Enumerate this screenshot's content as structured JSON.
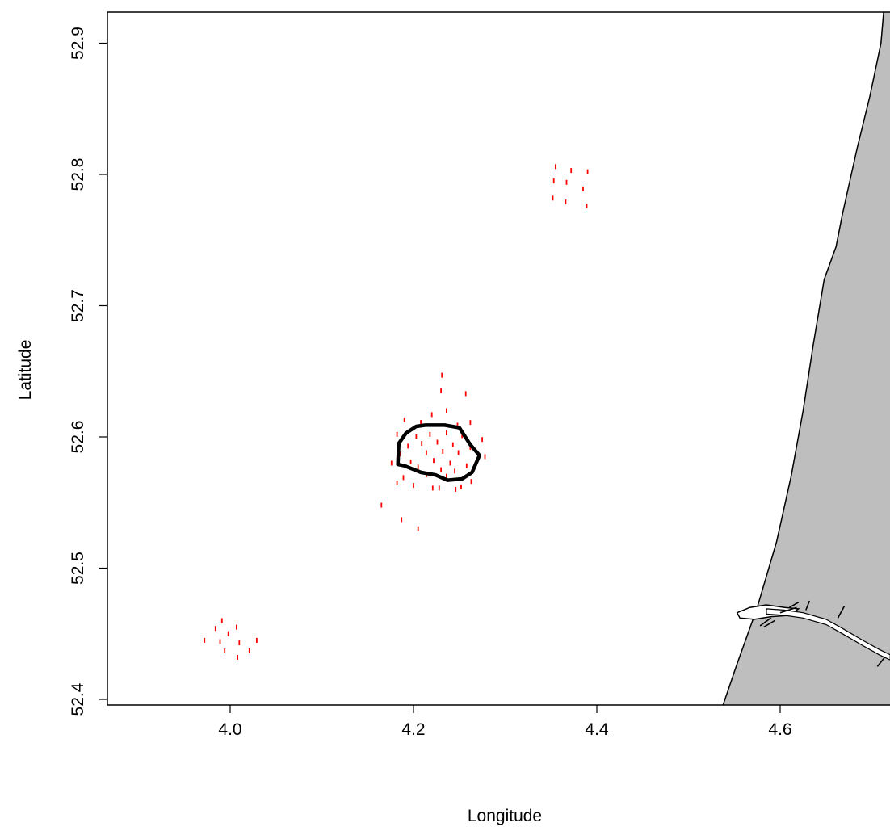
{
  "chart_data": {
    "type": "scatter",
    "title": "",
    "xlabel": "Longitude",
    "ylabel": "Latitude",
    "xlim": [
      3.88,
      4.72
    ],
    "ylim": [
      52.38,
      52.92
    ],
    "xticks": [
      4.0,
      4.2,
      4.4,
      4.6
    ],
    "xtick_labels": [
      "4.0",
      "4.2",
      "4.4",
      "4.6"
    ],
    "yticks": [
      52.4,
      52.5,
      52.6,
      52.7,
      52.8,
      52.9
    ],
    "ytick_labels": [
      "52.4",
      "52.5",
      "52.6",
      "52.7",
      "52.8",
      "52.9"
    ],
    "grid": false,
    "colors": {
      "points": "#ff0000",
      "land": "#bebebe",
      "outline": "#000000"
    },
    "series": [
      {
        "values": [
          [
            4.355,
            52.806
          ],
          [
            4.372,
            52.803
          ],
          [
            4.39,
            52.802
          ],
          [
            4.353,
            52.795
          ],
          [
            4.367,
            52.794
          ],
          [
            4.385,
            52.789
          ],
          [
            4.352,
            52.782
          ],
          [
            4.366,
            52.779
          ],
          [
            4.389,
            52.776
          ],
          [
            3.991,
            52.46
          ],
          [
            3.984,
            52.454
          ],
          [
            4.007,
            52.455
          ],
          [
            3.998,
            52.45
          ],
          [
            3.972,
            52.445
          ],
          [
            3.989,
            52.444
          ],
          [
            4.01,
            52.443
          ],
          [
            4.029,
            52.445
          ],
          [
            3.994,
            52.437
          ],
          [
            4.021,
            52.437
          ],
          [
            4.008,
            52.432
          ],
          [
            4.231,
            52.647
          ],
          [
            4.23,
            52.635
          ],
          [
            4.257,
            52.633
          ],
          [
            4.236,
            52.62
          ],
          [
            4.22,
            52.617
          ],
          [
            4.262,
            52.611
          ],
          [
            4.19,
            52.613
          ],
          [
            4.208,
            52.611
          ],
          [
            4.248,
            52.609
          ],
          [
            4.182,
            52.602
          ],
          [
            4.203,
            52.6
          ],
          [
            4.218,
            52.602
          ],
          [
            4.236,
            52.603
          ],
          [
            4.253,
            52.601
          ],
          [
            4.275,
            52.598
          ],
          [
            4.194,
            52.593
          ],
          [
            4.209,
            52.595
          ],
          [
            4.226,
            52.596
          ],
          [
            4.243,
            52.594
          ],
          [
            4.262,
            52.592
          ],
          [
            4.186,
            52.587
          ],
          [
            4.214,
            52.588
          ],
          [
            4.232,
            52.589
          ],
          [
            4.249,
            52.588
          ],
          [
            4.278,
            52.585
          ],
          [
            4.176,
            52.58
          ],
          [
            4.197,
            52.581
          ],
          [
            4.222,
            52.582
          ],
          [
            4.24,
            52.58
          ],
          [
            4.258,
            52.578
          ],
          [
            4.205,
            52.577
          ],
          [
            4.23,
            52.575
          ],
          [
            4.245,
            52.574
          ],
          [
            4.189,
            52.569
          ],
          [
            4.214,
            52.571
          ],
          [
            4.236,
            52.57
          ],
          [
            4.263,
            52.566
          ],
          [
            4.182,
            52.565
          ],
          [
            4.2,
            52.563
          ],
          [
            4.228,
            52.561
          ],
          [
            4.246,
            52.56
          ],
          [
            4.221,
            52.561
          ],
          [
            4.165,
            52.548
          ],
          [
            4.187,
            52.537
          ],
          [
            4.205,
            52.53
          ],
          [
            4.252,
            52.562
          ]
        ]
      }
    ],
    "polygon": [
      [
        4.213,
        52.609
      ],
      [
        4.234,
        52.609
      ],
      [
        4.25,
        52.607
      ],
      [
        4.262,
        52.594
      ],
      [
        4.272,
        52.586
      ],
      [
        4.264,
        52.573
      ],
      [
        4.253,
        52.568
      ],
      [
        4.237,
        52.567
      ],
      [
        4.224,
        52.571
      ],
      [
        4.208,
        52.573
      ],
      [
        4.19,
        52.578
      ],
      [
        4.183,
        52.579
      ],
      [
        4.184,
        52.595
      ],
      [
        4.192,
        52.603
      ],
      [
        4.203,
        52.608
      ]
    ],
    "coastline": [
      [
        4.53,
        52.38
      ],
      [
        4.552,
        52.425
      ],
      [
        4.575,
        52.47
      ],
      [
        4.596,
        52.52
      ],
      [
        4.612,
        52.57
      ],
      [
        4.625,
        52.62
      ],
      [
        4.636,
        52.67
      ],
      [
        4.648,
        52.72
      ],
      [
        4.661,
        52.745
      ],
      [
        4.668,
        52.77
      ],
      [
        4.684,
        52.82
      ],
      [
        4.698,
        52.86
      ],
      [
        4.71,
        52.9
      ],
      [
        4.713,
        52.925
      ]
    ],
    "channel": [
      [
        4.585,
        52.467
      ],
      [
        4.605,
        52.466
      ],
      [
        4.625,
        52.464
      ],
      [
        4.65,
        52.459
      ],
      [
        4.668,
        52.452
      ],
      [
        4.69,
        52.443
      ],
      [
        4.708,
        52.436
      ],
      [
        4.72,
        52.432
      ]
    ],
    "harbour_outline": [
      [
        4.553,
        52.466
      ],
      [
        4.567,
        52.47
      ],
      [
        4.585,
        52.472
      ],
      [
        4.605,
        52.47
      ],
      [
        4.62,
        52.469
      ],
      [
        4.61,
        52.464
      ],
      [
        4.59,
        52.463
      ],
      [
        4.572,
        52.461
      ],
      [
        4.556,
        52.462
      ]
    ]
  }
}
